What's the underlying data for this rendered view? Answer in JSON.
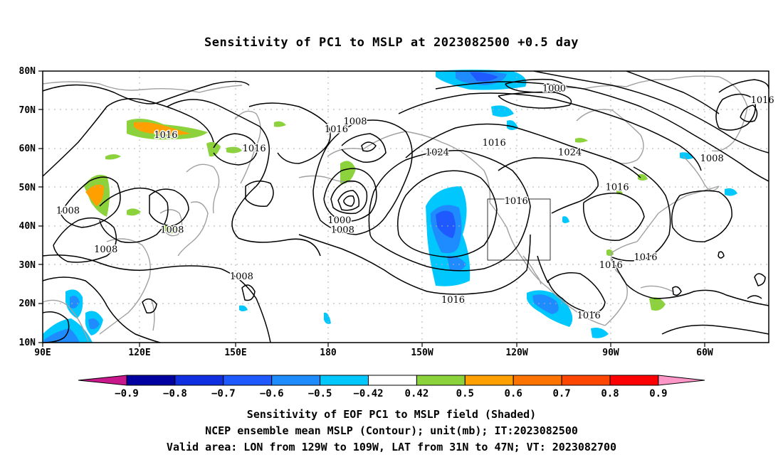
{
  "title": "Sensitivity of PC1 to MSLP at 2023082500 +0.5 day",
  "map": {
    "lat_ticks": [
      "80N",
      "70N",
      "60N",
      "50N",
      "40N",
      "30N",
      "20N",
      "10N"
    ],
    "lon_ticks": [
      "90E",
      "120E",
      "150E",
      "180",
      "150W",
      "120W",
      "90W",
      "60W"
    ],
    "lon_range": [
      "90E",
      "40W"
    ],
    "lat_range": [
      "10N",
      "80N"
    ],
    "valid_box": {
      "lon": [
        "129W",
        "109W"
      ],
      "lat": [
        "31N",
        "47N"
      ]
    },
    "contour_color": "#000000",
    "coastline_color": "#a0a0a0",
    "contour_labels": [
      {
        "text": "1016",
        "lon": 129,
        "lat": 63.5
      },
      {
        "text": "1008",
        "lon": 98,
        "lat": 44
      },
      {
        "text": "1008",
        "lon": 131,
        "lat": 39
      },
      {
        "text": "1008",
        "lon": 110,
        "lat": 34
      },
      {
        "text": "1016",
        "lon": 157,
        "lat": 60
      },
      {
        "text": "1016",
        "lon": -177,
        "lat": 65
      },
      {
        "text": "1008",
        "lon": -171,
        "lat": 67
      },
      {
        "text": "1000",
        "lon": -176,
        "lat": 41.5
      },
      {
        "text": "1008",
        "lon": -175,
        "lat": 39
      },
      {
        "text": "1008",
        "lon": 153,
        "lat": 27
      },
      {
        "text": "1000",
        "lon": -108,
        "lat": 75.5
      },
      {
        "text": "1016",
        "lon": -42,
        "lat": 72.5
      },
      {
        "text": "1016",
        "lon": -127,
        "lat": 61.5
      },
      {
        "text": "1024",
        "lon": -145,
        "lat": 59
      },
      {
        "text": "1024",
        "lon": -103,
        "lat": 59
      },
      {
        "text": "1016",
        "lon": -120,
        "lat": 46.5
      },
      {
        "text": "1016",
        "lon": -88,
        "lat": 50
      },
      {
        "text": "1008",
        "lon": -58,
        "lat": 57.5
      },
      {
        "text": "1016",
        "lon": -140,
        "lat": 21
      },
      {
        "text": "1016",
        "lon": -97,
        "lat": 17
      },
      {
        "text": "1016",
        "lon": -90,
        "lat": 30
      },
      {
        "text": "1016",
        "lon": -79,
        "lat": 32
      }
    ]
  },
  "colorbar": {
    "labels": [
      "−0.9",
      "−0.8",
      "−0.7",
      "−0.6",
      "−0.5",
      "−0.42",
      "0.42",
      "0.5",
      "0.6",
      "0.7",
      "0.8",
      "0.9"
    ],
    "colors": [
      "#0000a0",
      "#0f2fe0",
      "#1e5aff",
      "#1e8cff",
      "#00c8ff",
      "#ffffff",
      "#8cd23c",
      "#ffa000",
      "#ff7300",
      "#ff4600",
      "#ff0000"
    ],
    "low_color": "#c8188c",
    "high_color": "#ff96c8"
  },
  "footer": {
    "line1": "Sensitivity of EOF PC1 to MSLP field (Shaded)",
    "line2": "NCEP ensemble mean MSLP (Contour); unit(mb); IT:2023082500",
    "line3": "Valid area: LON from 129W to 109W, LAT from 31N to 47N; VT: 2023082700"
  }
}
